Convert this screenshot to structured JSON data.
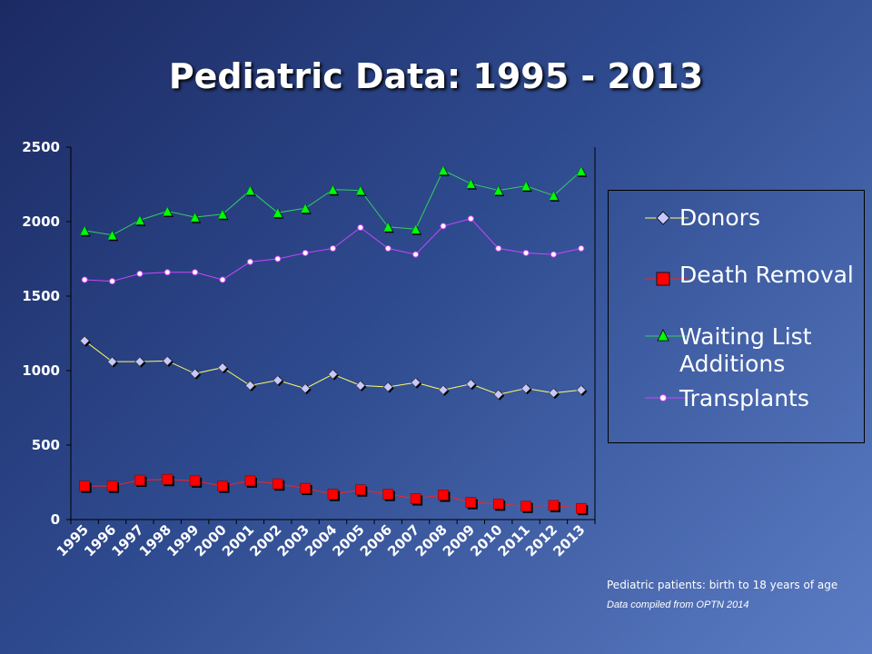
{
  "slide": {
    "title": "Pediatric Data: 1995 - 2013",
    "footnote_1": "Pediatric patients: birth to 18 years of age",
    "footnote_2": "Data compiled from OPTN 2014"
  },
  "chart_data": {
    "type": "line",
    "title": "",
    "xlabel": "",
    "ylabel": "",
    "ylim": [
      0,
      2500
    ],
    "y_ticks": [
      0,
      500,
      1000,
      1500,
      2000,
      2500
    ],
    "grid": false,
    "legend_position": "right",
    "categories": [
      "1995",
      "1996",
      "1997",
      "1998",
      "1999",
      "2000",
      "2001",
      "2002",
      "2003",
      "2004",
      "2005",
      "2006",
      "2007",
      "2008",
      "2009",
      "2010",
      "2011",
      "2012",
      "2013"
    ],
    "series": [
      {
        "name": "Donors",
        "color": "#ffff66",
        "marker": "diamond",
        "marker_fill": "#c8c8ff",
        "values": [
          1200,
          1060,
          1060,
          1065,
          980,
          1020,
          900,
          935,
          880,
          975,
          900,
          890,
          920,
          870,
          910,
          840,
          880,
          850,
          870
        ]
      },
      {
        "name": "Death Removal",
        "color": "#ff2020",
        "marker": "square",
        "marker_fill": "#ff0000",
        "values": [
          225,
          225,
          265,
          270,
          260,
          225,
          260,
          240,
          210,
          170,
          200,
          170,
          140,
          165,
          115,
          105,
          90,
          95,
          75
        ]
      },
      {
        "name": "Waiting List Additions",
        "color": "#33cc66",
        "marker": "triangle",
        "marker_fill": "#00ff00",
        "values": [
          1940,
          1910,
          2010,
          2070,
          2030,
          2050,
          2210,
          2060,
          2090,
          2215,
          2210,
          1965,
          1950,
          2345,
          2255,
          2210,
          2240,
          2175,
          2340
        ]
      },
      {
        "name": "Transplants",
        "color": "#cc44ff",
        "marker": "circle",
        "marker_fill": "#ffffff",
        "values": [
          1610,
          1600,
          1650,
          1660,
          1660,
          1610,
          1730,
          1750,
          1790,
          1820,
          1960,
          1820,
          1780,
          1970,
          2020,
          1820,
          1790,
          1780,
          1820
        ]
      }
    ],
    "legend_labels": {
      "donors": "Donors",
      "death_removal": "Death Removal",
      "waiting_1": "Waiting List",
      "waiting_2": "Additions",
      "transplants": "Transplants"
    }
  }
}
